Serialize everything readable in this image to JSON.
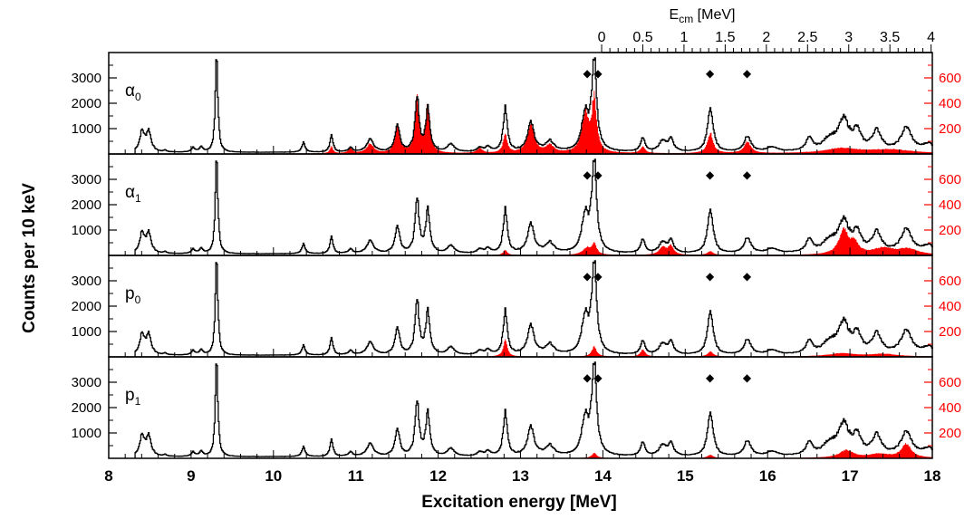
{
  "chart_data": {
    "type": "histogram",
    "xlabel": "Excitation energy [MeV]",
    "ylabel": "Counts per 10 keV",
    "x_axis": {
      "range": [
        8,
        18
      ],
      "ticks": [
        {
          "value": 8,
          "label": "8"
        },
        {
          "value": 9,
          "label": "9"
        },
        {
          "value": 10,
          "label": "10"
        },
        {
          "value": 11,
          "label": "11"
        },
        {
          "value": 12,
          "label": "12"
        },
        {
          "value": 13,
          "label": "13"
        },
        {
          "value": 14,
          "label": "14"
        },
        {
          "value": 15,
          "label": "15"
        },
        {
          "value": 16,
          "label": "16"
        },
        {
          "value": 17,
          "label": "17"
        },
        {
          "value": 18,
          "label": "18"
        }
      ]
    },
    "top_axis": {
      "label_main": "E",
      "label_sub": "cm",
      "label_unit": " [MeV]",
      "ticks": [
        {
          "value": 0,
          "label": "0"
        },
        {
          "value": 0.5,
          "label": "0.5"
        },
        {
          "value": 1,
          "label": "1"
        },
        {
          "value": 1.5,
          "label": "1.5"
        },
        {
          "value": 2,
          "label": "2"
        },
        {
          "value": 2.5,
          "label": "2.5"
        },
        {
          "value": 3,
          "label": "3"
        },
        {
          "value": 3.5,
          "label": "3.5"
        },
        {
          "value": 4,
          "label": "4"
        }
      ]
    },
    "left_axis": {
      "range": [
        0,
        4000
      ],
      "ticks": [
        {
          "value": 1000,
          "label": "1000"
        },
        {
          "value": 2000,
          "label": "2000"
        },
        {
          "value": 3000,
          "label": "3000"
        }
      ]
    },
    "right_axis": {
      "range": [
        0,
        800
      ],
      "color": "#ff0000",
      "ticks": [
        {
          "value": 200,
          "label": "200"
        },
        {
          "value": 400,
          "label": "400"
        },
        {
          "value": 600,
          "label": "600"
        }
      ]
    },
    "colors": {
      "total": "#000000",
      "gated": "#ff0000"
    },
    "total_spectrum": {
      "baseline": 60,
      "bins": 0.01,
      "peaks": [
        {
          "e": 8.4,
          "h": 780,
          "w": 0.035
        },
        {
          "e": 8.48,
          "h": 800,
          "w": 0.035
        },
        {
          "e": 8.68,
          "h": 70,
          "w": 0.02
        },
        {
          "e": 9.02,
          "h": 180,
          "w": 0.025
        },
        {
          "e": 9.12,
          "h": 200,
          "w": 0.025
        },
        {
          "e": 9.305,
          "h": 3880,
          "w": 0.018
        },
        {
          "e": 10.36,
          "h": 380,
          "w": 0.025
        },
        {
          "e": 10.7,
          "h": 700,
          "w": 0.022
        },
        {
          "e": 10.93,
          "h": 170,
          "w": 0.03
        },
        {
          "e": 11.17,
          "h": 500,
          "w": 0.05
        },
        {
          "e": 11.5,
          "h": 1050,
          "w": 0.035
        },
        {
          "e": 11.74,
          "h": 2050,
          "w": 0.03
        },
        {
          "e": 11.87,
          "h": 1700,
          "w": 0.03
        },
        {
          "e": 12.15,
          "h": 300,
          "w": 0.05
        },
        {
          "e": 12.5,
          "h": 150,
          "w": 0.04
        },
        {
          "e": 12.6,
          "h": 180,
          "w": 0.04
        },
        {
          "e": 12.81,
          "h": 1700,
          "w": 0.03
        },
        {
          "e": 13.12,
          "h": 1120,
          "w": 0.05
        },
        {
          "e": 13.35,
          "h": 400,
          "w": 0.06
        },
        {
          "e": 13.78,
          "h": 1500,
          "w": 0.05
        },
        {
          "e": 13.89,
          "h": 3550,
          "w": 0.035
        },
        {
          "e": 14.48,
          "h": 520,
          "w": 0.035
        },
        {
          "e": 14.72,
          "h": 420,
          "w": 0.05
        },
        {
          "e": 14.82,
          "h": 480,
          "w": 0.04
        },
        {
          "e": 15.3,
          "h": 1750,
          "w": 0.04
        },
        {
          "e": 15.75,
          "h": 600,
          "w": 0.05
        },
        {
          "e": 16.05,
          "h": 180,
          "w": 0.08
        },
        {
          "e": 16.5,
          "h": 480,
          "w": 0.05
        },
        {
          "e": 16.75,
          "h": 450,
          "w": 0.1
        },
        {
          "e": 16.92,
          "h": 1150,
          "w": 0.08
        },
        {
          "e": 17.08,
          "h": 700,
          "w": 0.06
        },
        {
          "e": 17.32,
          "h": 780,
          "w": 0.07
        },
        {
          "e": 17.68,
          "h": 930,
          "w": 0.08
        },
        {
          "e": 17.95,
          "h": 300,
          "w": 0.08
        }
      ]
    },
    "markers": {
      "symbol": "◆",
      "energies": [
        13.81,
        13.94,
        15.3,
        15.75
      ]
    },
    "panels": [
      {
        "label_main": "α",
        "label_sub": "0",
        "gated_spectrum": {
          "threshold": 10.0,
          "baseline": 3,
          "peaks": [
            {
              "e": 10.7,
              "h": 55,
              "w": 0.022
            },
            {
              "e": 10.93,
              "h": 40,
              "w": 0.03
            },
            {
              "e": 11.17,
              "h": 75,
              "w": 0.05
            },
            {
              "e": 11.5,
              "h": 220,
              "w": 0.035
            },
            {
              "e": 11.74,
              "h": 430,
              "w": 0.03
            },
            {
              "e": 11.87,
              "h": 380,
              "w": 0.03
            },
            {
              "e": 12.5,
              "h": 40,
              "w": 0.04
            },
            {
              "e": 12.81,
              "h": 150,
              "w": 0.03
            },
            {
              "e": 13.12,
              "h": 230,
              "w": 0.05
            },
            {
              "e": 13.35,
              "h": 60,
              "w": 0.06
            },
            {
              "e": 13.78,
              "h": 300,
              "w": 0.05
            },
            {
              "e": 13.89,
              "h": 420,
              "w": 0.035
            },
            {
              "e": 14.48,
              "h": 50,
              "w": 0.035
            },
            {
              "e": 15.3,
              "h": 160,
              "w": 0.04
            },
            {
              "e": 15.75,
              "h": 90,
              "w": 0.05
            },
            {
              "e": 16.9,
              "h": 40,
              "w": 0.25
            },
            {
              "e": 17.5,
              "h": 30,
              "w": 0.3
            }
          ]
        }
      },
      {
        "label_main": "α",
        "label_sub": "1",
        "gated_spectrum": {
          "threshold": 10.0,
          "baseline": 2,
          "peaks": [
            {
              "e": 12.81,
              "h": 40,
              "w": 0.03
            },
            {
              "e": 13.8,
              "h": 55,
              "w": 0.06
            },
            {
              "e": 13.89,
              "h": 80,
              "w": 0.035
            },
            {
              "e": 14.72,
              "h": 60,
              "w": 0.05
            },
            {
              "e": 14.82,
              "h": 70,
              "w": 0.04
            },
            {
              "e": 15.3,
              "h": 30,
              "w": 0.04
            },
            {
              "e": 16.92,
              "h": 190,
              "w": 0.07
            },
            {
              "e": 17.05,
              "h": 80,
              "w": 0.06
            },
            {
              "e": 17.4,
              "h": 50,
              "w": 0.15
            },
            {
              "e": 17.7,
              "h": 45,
              "w": 0.15
            }
          ]
        }
      },
      {
        "label_main": "p",
        "label_sub": "0",
        "gated_spectrum": {
          "threshold": 10.0,
          "baseline": 2,
          "peaks": [
            {
              "e": 12.81,
              "h": 130,
              "w": 0.03
            },
            {
              "e": 13.89,
              "h": 80,
              "w": 0.035
            },
            {
              "e": 14.48,
              "h": 55,
              "w": 0.035
            },
            {
              "e": 15.3,
              "h": 40,
              "w": 0.04
            },
            {
              "e": 16.9,
              "h": 25,
              "w": 0.2
            },
            {
              "e": 17.4,
              "h": 20,
              "w": 0.2
            }
          ]
        }
      },
      {
        "label_main": "p",
        "label_sub": "1",
        "gated_spectrum": {
          "threshold": 10.0,
          "baseline": 2,
          "peaks": [
            {
              "e": 13.89,
              "h": 40,
              "w": 0.035
            },
            {
              "e": 15.3,
              "h": 25,
              "w": 0.04
            },
            {
              "e": 16.95,
              "h": 60,
              "w": 0.1
            },
            {
              "e": 17.68,
              "h": 110,
              "w": 0.07
            },
            {
              "e": 17.35,
              "h": 30,
              "w": 0.15
            }
          ]
        }
      }
    ]
  }
}
